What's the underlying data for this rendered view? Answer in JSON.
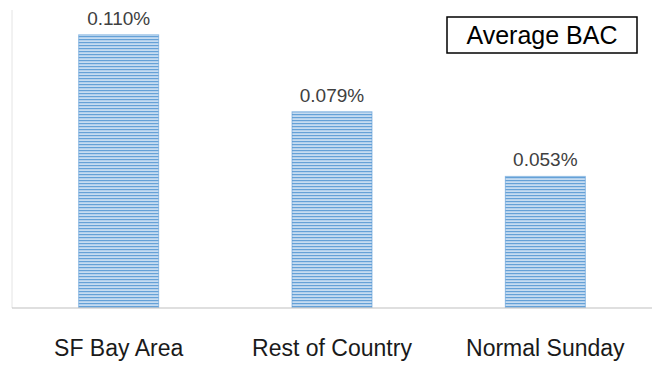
{
  "chart_data": {
    "type": "bar",
    "title": "Average BAC",
    "categories": [
      "SF Bay Area",
      "Rest of Country",
      "Normal Sunday"
    ],
    "values": [
      0.11,
      0.079,
      0.053
    ],
    "value_labels": [
      "0.110%",
      "0.079%",
      "0.053%"
    ],
    "color": "#5b9bd5",
    "ylim": [
      0,
      0.12
    ],
    "data_labels": true,
    "tick_labels": "x",
    "grid": false
  }
}
